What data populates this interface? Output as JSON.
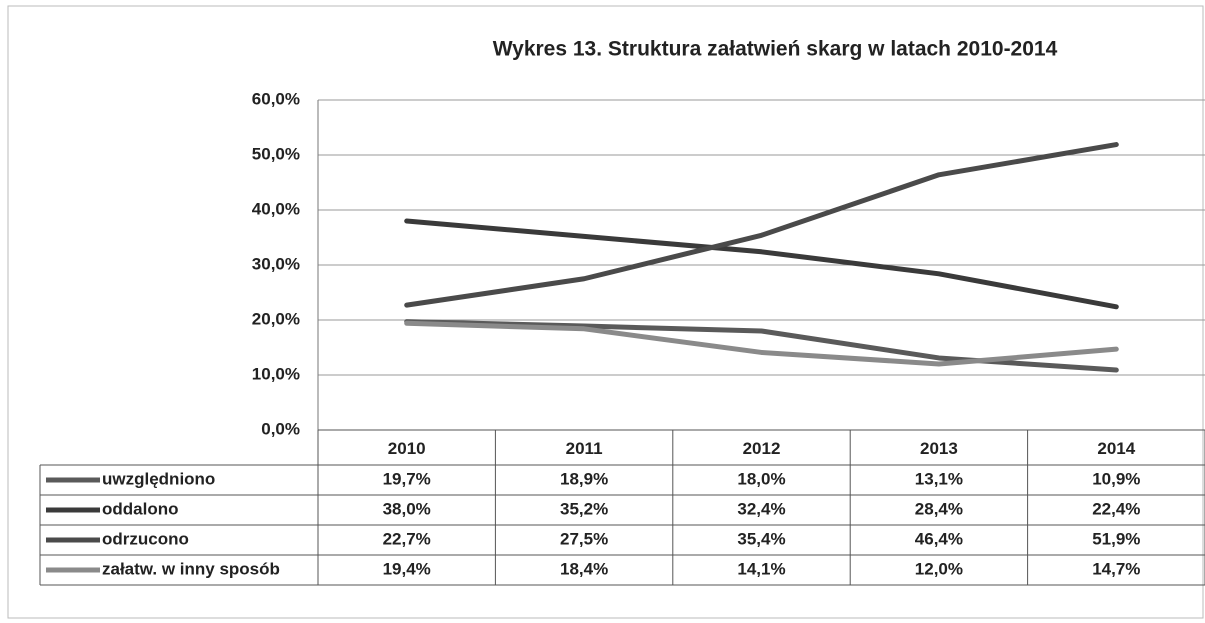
{
  "chart_data": {
    "type": "line",
    "title": "Wykres 13. Struktura załatwień skarg w latach 2010-2014",
    "categories": [
      "2010",
      "2011",
      "2012",
      "2013",
      "2014"
    ],
    "series": [
      {
        "name": "uwzględniono",
        "color": "#5a5a5a",
        "values": [
          19.7,
          18.9,
          18.0,
          13.1,
          10.9
        ],
        "value_labels": [
          "19,7%",
          "18,9%",
          "18,0%",
          "13,1%",
          "10,9%"
        ]
      },
      {
        "name": "oddalono",
        "color": "#3a3a3a",
        "values": [
          38.0,
          35.2,
          32.4,
          28.4,
          22.4
        ],
        "value_labels": [
          "38,0%",
          "35,2%",
          "32,4%",
          "28,4%",
          "22,4%"
        ]
      },
      {
        "name": "odrzucono",
        "color": "#4a4a4a",
        "values": [
          22.7,
          27.5,
          35.4,
          46.4,
          51.9
        ],
        "value_labels": [
          "22,7%",
          "27,5%",
          "35,4%",
          "46,4%",
          "51,9%"
        ]
      },
      {
        "name": "załatw. w inny sposób",
        "color": "#8a8a8a",
        "values": [
          19.4,
          18.4,
          14.1,
          12.0,
          14.7
        ],
        "value_labels": [
          "19,4%",
          "18,4%",
          "14,1%",
          "12,0%",
          "14,7%"
        ]
      }
    ],
    "ylim": [
      0,
      60
    ],
    "yticks": [
      {
        "value": 0,
        "label": "0,0%"
      },
      {
        "value": 10,
        "label": "10,0%"
      },
      {
        "value": 20,
        "label": "20,0%"
      },
      {
        "value": 30,
        "label": "30,0%"
      },
      {
        "value": 40,
        "label": "40,0%"
      },
      {
        "value": 50,
        "label": "50,0%"
      },
      {
        "value": 60,
        "label": "60,0%"
      }
    ],
    "grid": true
  }
}
